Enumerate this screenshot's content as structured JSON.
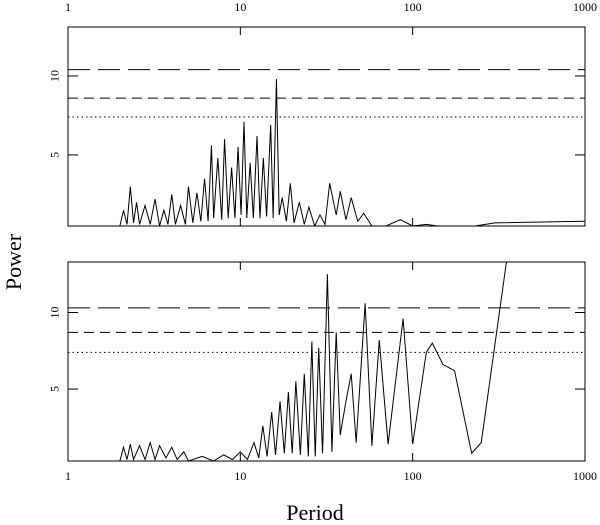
{
  "chart_data": [
    {
      "type": "line",
      "ylabel": "Power",
      "log_x": true,
      "xtick_position": "top",
      "xlim": [
        1,
        1000
      ],
      "xticks": [
        1,
        10,
        100,
        1000
      ],
      "ylim": [
        0.5,
        13.1
      ],
      "yticks": [
        5,
        10
      ],
      "hlines": [
        {
          "value": 10.4,
          "style": "long-dash"
        },
        {
          "value": 8.6,
          "style": "dash"
        },
        {
          "value": 7.4,
          "style": "dot"
        }
      ],
      "series": [
        {
          "color": "#000000",
          "x": [
            2.0,
            2.1,
            2.2,
            2.3,
            2.4,
            2.5,
            2.6,
            2.8,
            3.0,
            3.2,
            3.4,
            3.6,
            3.8,
            4.0,
            4.2,
            4.5,
            4.8,
            5.0,
            5.3,
            5.6,
            5.9,
            6.2,
            6.5,
            6.8,
            7.0,
            7.4,
            7.8,
            8.1,
            8.5,
            8.9,
            9.3,
            9.7,
            10.1,
            10.5,
            10.9,
            11.4,
            11.9,
            12.5,
            13.0,
            13.6,
            14.2,
            15.0,
            15.5,
            16.2,
            16.8,
            17.5,
            18.5,
            19.5,
            20.5,
            22,
            23.5,
            25,
            27,
            29,
            31,
            33,
            36,
            38,
            41,
            44,
            48,
            52,
            58,
            70,
            85,
            100,
            120,
            140,
            230,
            300,
            1000
          ],
          "values": [
            0.5,
            1.5,
            0.6,
            3.0,
            0.7,
            2.0,
            0.6,
            1.8,
            0.6,
            2.2,
            0.5,
            1.5,
            0.6,
            2.5,
            0.6,
            1.8,
            0.6,
            3.0,
            0.7,
            2.6,
            0.8,
            3.5,
            0.8,
            5.6,
            1.0,
            4.8,
            0.9,
            6.0,
            1.0,
            4.2,
            1.0,
            5.5,
            1.2,
            7.1,
            1.0,
            4.5,
            1.0,
            6.2,
            1.0,
            4.8,
            1.1,
            6.9,
            1.0,
            9.8,
            1.2,
            2.3,
            0.8,
            3.2,
            0.7,
            2.0,
            0.6,
            1.7,
            0.5,
            1.2,
            0.6,
            3.2,
            1.2,
            2.7,
            0.9,
            2.3,
            0.8,
            1.3,
            0.5,
            0.5,
            0.9,
            0.5,
            0.6,
            0.5,
            0.5,
            0.7,
            0.8
          ]
        }
      ]
    },
    {
      "type": "line",
      "xlabel": "Period",
      "log_x": true,
      "xtick_position": "bottom",
      "xlim": [
        1,
        1000
      ],
      "xticks": [
        1,
        10,
        100,
        1000
      ],
      "ylim": [
        0.3,
        13.3
      ],
      "yticks": [
        5,
        10
      ],
      "hlines": [
        {
          "value": 10.3,
          "style": "long-dash"
        },
        {
          "value": 8.7,
          "style": "dash"
        },
        {
          "value": 7.4,
          "style": "dot"
        }
      ],
      "series": [
        {
          "color": "#000000",
          "x": [
            2.0,
            2.1,
            2.2,
            2.3,
            2.4,
            2.6,
            2.8,
            3.0,
            3.2,
            3.4,
            3.7,
            4.0,
            4.3,
            4.7,
            5.0,
            6,
            7,
            8,
            9,
            10,
            11,
            12,
            12.8,
            13.5,
            14.3,
            15.2,
            16,
            17,
            18,
            19,
            20,
            21,
            22.3,
            23.5,
            24.8,
            26,
            27.2,
            28.5,
            30,
            32,
            34,
            36,
            38,
            41,
            44,
            47,
            53,
            58,
            64,
            72,
            88,
            100,
            120,
            130,
            150,
            175,
            220,
            250,
            350
          ],
          "values": [
            0.3,
            1.2,
            0.4,
            1.4,
            0.4,
            1.3,
            0.4,
            1.5,
            0.4,
            1.3,
            0.5,
            1.2,
            0.4,
            0.9,
            0.3,
            0.6,
            0.3,
            0.7,
            0.4,
            0.9,
            0.4,
            1.5,
            0.5,
            2.6,
            0.6,
            3.5,
            0.7,
            4.2,
            0.8,
            4.8,
            0.8,
            5.5,
            0.7,
            6.0,
            0.6,
            8.1,
            0.6,
            7.7,
            0.8,
            12.5,
            0.9,
            8.7,
            2.0,
            4.2,
            6.0,
            1.5,
            10.6,
            1.3,
            8.2,
            1.4,
            9.6,
            1.4,
            7.4,
            8.0,
            6.6,
            6.2,
            0.8,
            1.5,
            13.3
          ]
        }
      ]
    }
  ]
}
